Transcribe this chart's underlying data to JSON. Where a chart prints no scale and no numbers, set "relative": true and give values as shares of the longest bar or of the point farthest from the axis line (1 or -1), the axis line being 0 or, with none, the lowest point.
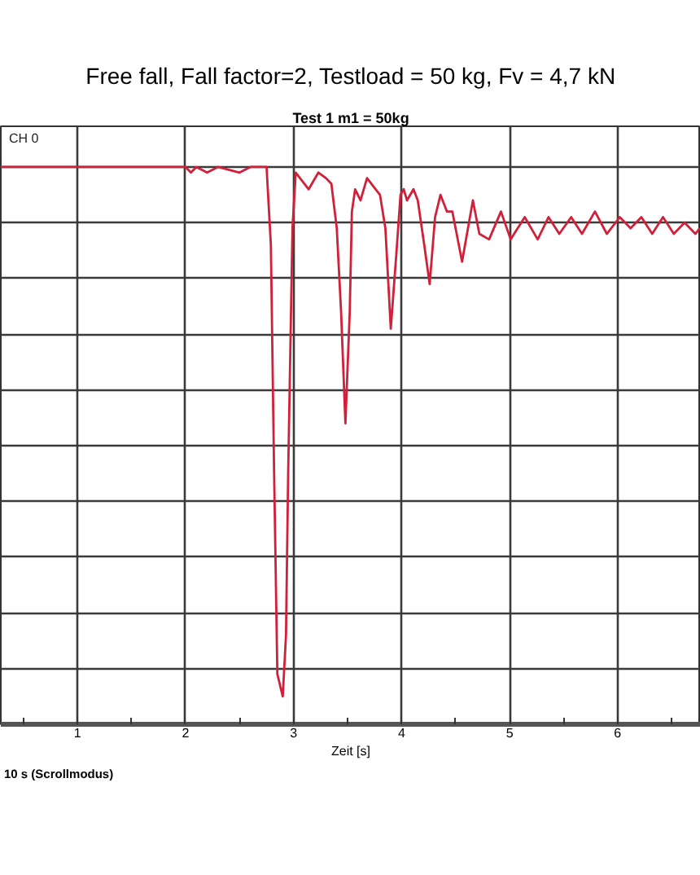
{
  "chart_data": {
    "type": "line",
    "title": "Free fall, Fall factor=2, Testload = 50 kg, Fv = 4,7 kN",
    "subtitle": "Test 1 m1 = 50kg",
    "xlabel": "Zeit [s]",
    "annotations": [
      "CH 0",
      "10 s (Scrollmodus)"
    ],
    "relative": true,
    "grid": true,
    "xlim": [
      0.29,
      6.77
    ],
    "xticks": [
      {
        "value": 0.5,
        "label": null
      },
      1,
      {
        "value": 1.5,
        "label": null
      },
      2,
      {
        "value": 2.5,
        "label": null
      },
      3,
      {
        "value": 3.5,
        "label": null
      },
      4,
      {
        "value": 4.5,
        "label": null
      },
      5,
      {
        "value": 5.5,
        "label": null
      },
      6,
      {
        "value": 6.5,
        "label": null
      }
    ],
    "series": [
      {
        "color": "#d0203a",
        "x": [
          0.29,
          2.0,
          2.05,
          2.1,
          2.2,
          2.3,
          2.5,
          2.6,
          2.75,
          2.79,
          2.82,
          2.85,
          2.9,
          2.93,
          2.95,
          2.99,
          3.02,
          3.14,
          3.23,
          3.3,
          3.35,
          3.4,
          3.44,
          3.48,
          3.52,
          3.54,
          3.57,
          3.62,
          3.68,
          3.76,
          3.8,
          3.85,
          3.9,
          3.95,
          3.99,
          4.02,
          4.05,
          4.11,
          4.15,
          4.21,
          4.26,
          4.31,
          4.36,
          4.42,
          4.47,
          4.56,
          4.66,
          4.72,
          4.81,
          4.92,
          5.01,
          5.14,
          5.26,
          5.36,
          5.46,
          5.57,
          5.67,
          5.79,
          5.9,
          6.02,
          6.12,
          6.22,
          6.32,
          6.42,
          6.52,
          6.62,
          6.72,
          6.76
        ],
        "values": [
          1.0,
          1.0,
          0.99,
          1.0,
          0.99,
          1.0,
          0.99,
          1.0,
          1.0,
          0.86,
          0.45,
          0.09,
          0.05,
          0.16,
          0.45,
          0.89,
          0.99,
          0.96,
          0.99,
          0.98,
          0.97,
          0.89,
          0.74,
          0.54,
          0.74,
          0.92,
          0.96,
          0.94,
          0.98,
          0.96,
          0.95,
          0.89,
          0.71,
          0.84,
          0.95,
          0.96,
          0.94,
          0.96,
          0.94,
          0.86,
          0.79,
          0.91,
          0.95,
          0.92,
          0.92,
          0.83,
          0.94,
          0.88,
          0.87,
          0.92,
          0.87,
          0.91,
          0.87,
          0.91,
          0.88,
          0.91,
          0.88,
          0.92,
          0.88,
          0.91,
          0.89,
          0.91,
          0.88,
          0.91,
          0.88,
          0.9,
          0.88,
          0.89
        ]
      }
    ]
  }
}
